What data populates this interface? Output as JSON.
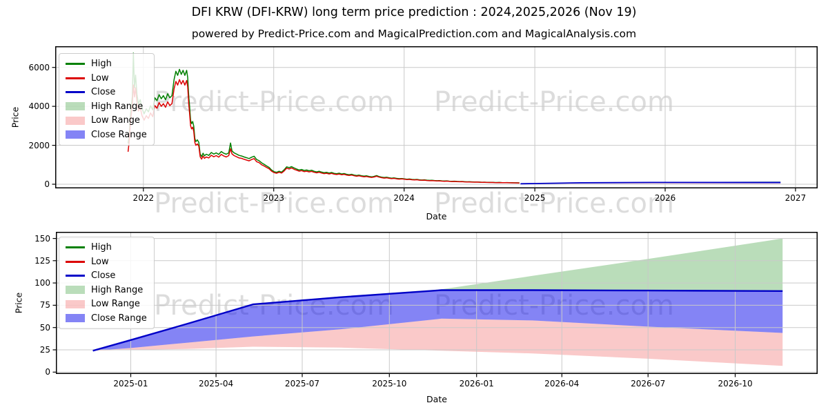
{
  "header": {
    "title": "DFI KRW (DFI-KRW) long term price prediction : 2024,2025,2026 (Nov 19)",
    "subtitle": "powered by Predict-Price.com and MagicalPrediction.com and MagicalAnalysis.com"
  },
  "watermark": {
    "text": "Predict-Price.com",
    "color": "#dcdcdc"
  },
  "colors": {
    "high": "#008000",
    "low": "#dc0000",
    "close": "#0000c8",
    "high_range": "rgba(0,128,0,0.27)",
    "low_range": "rgba(235,20,20,0.23)",
    "close_range": "rgba(10,10,235,0.5)",
    "grid": "#c9c9c9",
    "axis": "#000000"
  },
  "legend": {
    "items": [
      {
        "label": "High",
        "swatch": "line",
        "color": "high"
      },
      {
        "label": "Low",
        "swatch": "line",
        "color": "low"
      },
      {
        "label": "Close",
        "swatch": "line",
        "color": "close"
      },
      {
        "label": "High Range",
        "swatch": "patch",
        "color": "high_range"
      },
      {
        "label": "Low Range",
        "swatch": "patch",
        "color": "low_range"
      },
      {
        "label": "Close Range",
        "swatch": "patch",
        "color": "close_range"
      }
    ]
  },
  "chart_data": [
    {
      "type": "line",
      "name": "price-history-and-forecast",
      "ylabel": "Price",
      "xlabel": "Date",
      "grid": true,
      "legend_position": "upper left",
      "ylim": [
        -212,
        7086
      ],
      "xlim": [
        "2021-04-29",
        "2027-03-04"
      ],
      "yticks": [
        0,
        2000,
        4000,
        6000
      ],
      "xticks": [
        {
          "label": "2022",
          "date": "2022-01-01"
        },
        {
          "label": "2023",
          "date": "2023-01-01"
        },
        {
          "label": "2024",
          "date": "2024-01-01"
        },
        {
          "label": "2025",
          "date": "2025-01-01"
        },
        {
          "label": "2026",
          "date": "2026-01-01"
        },
        {
          "label": "2027",
          "date": "2027-01-01"
        }
      ],
      "history": [
        [
          "2021-11-19",
          2100,
          1670
        ],
        [
          "2021-11-22",
          2420,
          2140
        ],
        [
          "2021-11-26",
          3600,
          3230
        ],
        [
          "2021-12-01",
          4520,
          4100
        ],
        [
          "2021-12-04",
          6730,
          5100
        ],
        [
          "2021-12-07",
          4950,
          4480
        ],
        [
          "2021-12-10",
          5600,
          4950
        ],
        [
          "2021-12-14",
          4620,
          4200
        ],
        [
          "2021-12-18",
          4130,
          3760
        ],
        [
          "2021-12-23",
          4340,
          3950
        ],
        [
          "2021-12-28",
          3880,
          3520
        ],
        [
          "2022-01-03",
          3620,
          3290
        ],
        [
          "2022-01-09",
          3870,
          3520
        ],
        [
          "2022-01-15",
          3720,
          3380
        ],
        [
          "2022-01-21",
          4030,
          3660
        ],
        [
          "2022-01-27",
          3820,
          3470
        ],
        [
          "2022-02-02",
          4440,
          4040
        ],
        [
          "2022-02-08",
          4290,
          3900
        ],
        [
          "2022-02-14",
          4600,
          4190
        ],
        [
          "2022-02-20",
          4390,
          4000
        ],
        [
          "2022-02-26",
          4550,
          4140
        ],
        [
          "2022-03-04",
          4340,
          3950
        ],
        [
          "2022-03-10",
          4650,
          4230
        ],
        [
          "2022-03-16",
          4440,
          4040
        ],
        [
          "2022-03-22",
          4550,
          4140
        ],
        [
          "2022-03-28",
          5380,
          4900
        ],
        [
          "2022-04-02",
          5800,
          5280
        ],
        [
          "2022-04-07",
          5590,
          5090
        ],
        [
          "2022-04-12",
          5900,
          5370
        ],
        [
          "2022-04-17",
          5640,
          5140
        ],
        [
          "2022-04-22",
          5850,
          5330
        ],
        [
          "2022-04-27",
          5590,
          5090
        ],
        [
          "2022-05-02",
          5850,
          5330
        ],
        [
          "2022-05-05",
          5490,
          5000
        ],
        [
          "2022-05-08",
          4490,
          4090
        ],
        [
          "2022-05-10",
          4070,
          3710
        ],
        [
          "2022-05-13",
          3290,
          3000
        ],
        [
          "2022-05-16",
          3110,
          2840
        ],
        [
          "2022-05-19",
          3220,
          2930
        ],
        [
          "2022-05-22",
          2980,
          2710
        ],
        [
          "2022-05-25",
          2350,
          2140
        ],
        [
          "2022-05-28",
          2190,
          2000
        ],
        [
          "2022-06-01",
          2280,
          2070
        ],
        [
          "2022-06-05",
          2150,
          1960
        ],
        [
          "2022-06-09",
          1550,
          1410
        ],
        [
          "2022-06-13",
          1420,
          1290
        ],
        [
          "2022-06-17",
          1590,
          1450
        ],
        [
          "2022-06-21",
          1460,
          1330
        ],
        [
          "2022-06-26",
          1540,
          1400
        ],
        [
          "2022-07-03",
          1480,
          1350
        ],
        [
          "2022-07-10",
          1630,
          1490
        ],
        [
          "2022-07-17",
          1550,
          1410
        ],
        [
          "2022-07-24",
          1610,
          1470
        ],
        [
          "2022-07-31",
          1530,
          1390
        ],
        [
          "2022-08-07",
          1680,
          1530
        ],
        [
          "2022-08-14",
          1590,
          1450
        ],
        [
          "2022-08-21",
          1540,
          1400
        ],
        [
          "2022-08-28",
          1610,
          1470
        ],
        [
          "2022-09-02",
          2120,
          1820
        ],
        [
          "2022-09-06",
          1710,
          1560
        ],
        [
          "2022-09-12",
          1610,
          1470
        ],
        [
          "2022-09-19",
          1550,
          1410
        ],
        [
          "2022-09-26",
          1480,
          1350
        ],
        [
          "2022-10-03",
          1450,
          1330
        ],
        [
          "2022-10-10",
          1400,
          1280
        ],
        [
          "2022-10-17",
          1360,
          1240
        ],
        [
          "2022-10-24",
          1320,
          1200
        ],
        [
          "2022-10-31",
          1390,
          1270
        ],
        [
          "2022-11-07",
          1440,
          1320
        ],
        [
          "2022-11-14",
          1270,
          1160
        ],
        [
          "2022-11-21",
          1210,
          1110
        ],
        [
          "2022-11-28",
          1100,
          1000
        ],
        [
          "2022-12-05",
          1020,
          935
        ],
        [
          "2022-12-12",
          940,
          860
        ],
        [
          "2022-12-19",
          865,
          795
        ],
        [
          "2022-12-26",
          730,
          670
        ],
        [
          "2023-01-02",
          645,
          595
        ],
        [
          "2023-01-09",
          615,
          565
        ],
        [
          "2023-01-16",
          665,
          615
        ],
        [
          "2023-01-23",
          625,
          575
        ],
        [
          "2023-01-30",
          740,
          680
        ],
        [
          "2023-02-06",
          895,
          825
        ],
        [
          "2023-02-13",
          855,
          785
        ],
        [
          "2023-02-20",
          905,
          835
        ],
        [
          "2023-02-27",
          835,
          765
        ],
        [
          "2023-03-06",
          780,
          720
        ],
        [
          "2023-03-13",
          730,
          670
        ],
        [
          "2023-03-20",
          760,
          700
        ],
        [
          "2023-03-27",
          710,
          650
        ],
        [
          "2023-04-03",
          730,
          670
        ],
        [
          "2023-04-10",
          690,
          630
        ],
        [
          "2023-04-17",
          720,
          660
        ],
        [
          "2023-04-24",
          665,
          615
        ],
        [
          "2023-05-01",
          635,
          585
        ],
        [
          "2023-05-08",
          665,
          615
        ],
        [
          "2023-05-15",
          625,
          575
        ],
        [
          "2023-05-22",
          595,
          545
        ],
        [
          "2023-05-29",
          615,
          565
        ],
        [
          "2023-06-05",
          572,
          528
        ],
        [
          "2023-06-12",
          603,
          557
        ],
        [
          "2023-06-19",
          562,
          518
        ],
        [
          "2023-06-26",
          541,
          499
        ],
        [
          "2023-07-03",
          567,
          523
        ],
        [
          "2023-07-10",
          530,
          490
        ],
        [
          "2023-07-17",
          551,
          509
        ],
        [
          "2023-07-24",
          510,
          470
        ],
        [
          "2023-07-31",
          489,
          451
        ],
        [
          "2023-08-07",
          510,
          470
        ],
        [
          "2023-08-14",
          473,
          437
        ],
        [
          "2023-08-21",
          447,
          413
        ],
        [
          "2023-08-28",
          468,
          432
        ],
        [
          "2023-09-04",
          437,
          403
        ],
        [
          "2023-09-11",
          416,
          384
        ],
        [
          "2023-09-18",
          432,
          398
        ],
        [
          "2023-09-25",
          400,
          370
        ],
        [
          "2023-10-02",
          380,
          350
        ],
        [
          "2023-10-09",
          406,
          374
        ],
        [
          "2023-10-16",
          447,
          413
        ],
        [
          "2023-10-23",
          395,
          365
        ],
        [
          "2023-10-30",
          364,
          336
        ],
        [
          "2023-11-06",
          343,
          317
        ],
        [
          "2023-11-13",
          359,
          331
        ],
        [
          "2023-11-20",
          333,
          307
        ],
        [
          "2023-11-27",
          312,
          288
        ],
        [
          "2023-12-04",
          328,
          302
        ],
        [
          "2023-12-11",
          302,
          278
        ],
        [
          "2023-12-18",
          286,
          264
        ],
        [
          "2023-12-26",
          296,
          274
        ],
        [
          "2024-01-02",
          276,
          254
        ],
        [
          "2024-01-09",
          260,
          240
        ],
        [
          "2024-01-16",
          270,
          250
        ],
        [
          "2024-01-23",
          250,
          230
        ],
        [
          "2024-01-30",
          239,
          221
        ],
        [
          "2024-02-06",
          250,
          230
        ],
        [
          "2024-02-13",
          229,
          211
        ],
        [
          "2024-02-20",
          218,
          202
        ],
        [
          "2024-02-27",
          229,
          211
        ],
        [
          "2024-03-05",
          208,
          192
        ],
        [
          "2024-03-12",
          198,
          182
        ],
        [
          "2024-03-19",
          206,
          190
        ],
        [
          "2024-03-26",
          192,
          178
        ],
        [
          "2024-04-02",
          182,
          168
        ],
        [
          "2024-04-09",
          189,
          175
        ],
        [
          "2024-04-16",
          175,
          161
        ],
        [
          "2024-04-23",
          166,
          154
        ],
        [
          "2024-04-30",
          173,
          159
        ],
        [
          "2024-05-07",
          158,
          146
        ],
        [
          "2024-05-14",
          151,
          139
        ],
        [
          "2024-05-21",
          156,
          144
        ],
        [
          "2024-05-28",
          146,
          134
        ],
        [
          "2024-06-04",
          137,
          127
        ],
        [
          "2024-06-11",
          144,
          132
        ],
        [
          "2024-06-18",
          131,
          121
        ],
        [
          "2024-06-25",
          125,
          115
        ],
        [
          "2024-07-02",
          129,
          119
        ],
        [
          "2024-07-09",
          120,
          110
        ],
        [
          "2024-07-16",
          114,
          106
        ],
        [
          "2024-07-23",
          119,
          109
        ],
        [
          "2024-07-30",
          110,
          102
        ],
        [
          "2024-08-06",
          104,
          96
        ],
        [
          "2024-08-13",
          108,
          100
        ],
        [
          "2024-08-20",
          100,
          92
        ],
        [
          "2024-08-27",
          96,
          88
        ],
        [
          "2024-09-03",
          99,
          91
        ],
        [
          "2024-09-10",
          93,
          85
        ],
        [
          "2024-09-17",
          89,
          83
        ],
        [
          "2024-09-24",
          91,
          85
        ],
        [
          "2024-10-01",
          86,
          80
        ],
        [
          "2024-10-08",
          83,
          77
        ],
        [
          "2024-10-15",
          85,
          79
        ],
        [
          "2024-10-22",
          81,
          75
        ],
        [
          "2024-10-29",
          78,
          72
        ],
        [
          "2024-11-05",
          76,
          70
        ],
        [
          "2024-11-12",
          74,
          68
        ],
        [
          "2024-11-19",
          72,
          60
        ]
      ],
      "forecast": {
        "dates": [
          "2024-11-22",
          "2025-01-01",
          "2025-03-01",
          "2025-05-10",
          "2025-08-10",
          "2025-11-25",
          "2026-03-01",
          "2026-07-01",
          "2026-11-20"
        ],
        "close": [
          24,
          36,
          54,
          76,
          84,
          92,
          92,
          91.5,
          91
        ],
        "high_top": [
          24,
          36,
          54,
          76,
          85,
          93,
          108,
          127,
          150
        ],
        "range_mid": [
          24,
          27,
          33,
          40,
          48,
          60,
          58,
          51,
          44
        ],
        "low_bottom": [
          24,
          25,
          26,
          28.5,
          27.5,
          24,
          21,
          15,
          7
        ]
      }
    },
    {
      "type": "line",
      "name": "forecast-detail",
      "ylabel": "Price",
      "xlabel": "Date",
      "grid": true,
      "legend_position": "upper left",
      "ylim": [
        -2.1,
        157.4
      ],
      "xlim": [
        "2024-10-14",
        "2026-12-27"
      ],
      "yticks": [
        0,
        25,
        50,
        75,
        100,
        125,
        150
      ],
      "xticks": [
        {
          "label": "2025-01",
          "date": "2025-01-01"
        },
        {
          "label": "2025-04",
          "date": "2025-04-01"
        },
        {
          "label": "2025-07",
          "date": "2025-07-01"
        },
        {
          "label": "2025-10",
          "date": "2025-10-01"
        },
        {
          "label": "2026-01",
          "date": "2026-01-01"
        },
        {
          "label": "2026-04",
          "date": "2026-04-01"
        },
        {
          "label": "2026-07",
          "date": "2026-07-01"
        },
        {
          "label": "2026-10",
          "date": "2026-10-01"
        }
      ],
      "history": [],
      "forecast": {
        "dates": [
          "2024-11-22",
          "2025-01-01",
          "2025-03-01",
          "2025-05-10",
          "2025-08-10",
          "2025-11-25",
          "2026-03-01",
          "2026-07-01",
          "2026-11-20"
        ],
        "close": [
          24,
          36,
          54,
          76,
          84,
          92,
          92,
          91.5,
          91
        ],
        "high_top": [
          24,
          36,
          54,
          76,
          85,
          93,
          108,
          127,
          150
        ],
        "range_mid": [
          24,
          27,
          33,
          40,
          48,
          60,
          58,
          51,
          44
        ],
        "low_bottom": [
          24,
          25,
          26,
          28.5,
          27.5,
          24,
          21,
          15,
          7
        ]
      }
    }
  ]
}
